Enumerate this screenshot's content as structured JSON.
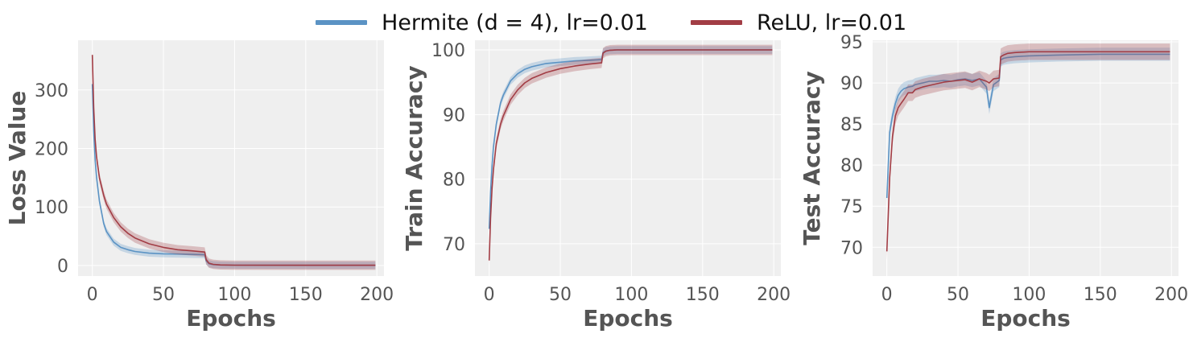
{
  "legend": {
    "items": [
      {
        "label": "Hermite (d = 4), lr=0.01",
        "color": "#5b93c4"
      },
      {
        "label": "ReLU, lr=0.01",
        "color": "#a23d45"
      }
    ]
  },
  "colors": {
    "hermite": "#5b93c4",
    "relu": "#a23d45",
    "axes_bg": "#efefef",
    "grid": "#ffffff",
    "tick_text": "#555555",
    "label_text": "#555555"
  },
  "chart_data": [
    {
      "type": "line",
      "ylabel": "Loss Value",
      "xlabel": "Epochs",
      "xlim": [
        -10,
        205
      ],
      "ylim": [
        -18,
        385
      ],
      "xticks": [
        0,
        50,
        100,
        150,
        200
      ],
      "yticks": [
        0,
        100,
        200,
        300
      ],
      "grid": true,
      "series": [
        {
          "name": "Hermite (d = 4), lr=0.01",
          "color": "#5b93c4",
          "band": 6,
          "x": [
            0,
            1,
            2,
            3,
            5,
            8,
            10,
            15,
            20,
            25,
            30,
            40,
            50,
            60,
            70,
            79,
            80,
            82,
            85,
            90,
            100,
            150,
            199
          ],
          "y": [
            310,
            230,
            180,
            150,
            110,
            72,
            58,
            40,
            31,
            27,
            24,
            21,
            20,
            19.5,
            19,
            18.5,
            8,
            3,
            1.5,
            0.8,
            0.5,
            0.3,
            0.3
          ]
        },
        {
          "name": "ReLU, lr=0.01",
          "color": "#a23d45",
          "band": 8,
          "x": [
            0,
            1,
            2,
            3,
            5,
            8,
            10,
            15,
            20,
            25,
            30,
            40,
            50,
            60,
            70,
            79,
            80,
            82,
            85,
            90,
            100,
            150,
            199
          ],
          "y": [
            360,
            270,
            215,
            185,
            150,
            120,
            105,
            82,
            66,
            55,
            47,
            37,
            31,
            27,
            25,
            23,
            10,
            4,
            2,
            1,
            0.6,
            0.4,
            0.4
          ]
        }
      ]
    },
    {
      "type": "line",
      "ylabel": "Train Accuracy",
      "xlabel": "Epochs",
      "xlim": [
        -10,
        205
      ],
      "ylim": [
        65,
        101.5
      ],
      "xticks": [
        0,
        50,
        100,
        150,
        200
      ],
      "yticks": [
        70,
        80,
        90,
        100
      ],
      "grid": true,
      "series": [
        {
          "name": "Hermite (d = 4), lr=0.01",
          "color": "#5b93c4",
          "band": 0.6,
          "x": [
            0,
            1,
            2,
            3,
            5,
            8,
            10,
            15,
            20,
            25,
            30,
            40,
            50,
            60,
            70,
            79,
            80,
            82,
            85,
            90,
            100,
            150,
            199
          ],
          "y": [
            72.3,
            78,
            82,
            85,
            88.5,
            91.8,
            93,
            95.2,
            96.3,
            97.0,
            97.4,
            97.9,
            98.1,
            98.3,
            98.4,
            98.5,
            99.6,
            99.85,
            99.95,
            100,
            100,
            100,
            100
          ]
        },
        {
          "name": "ReLU, lr=0.01",
          "color": "#a23d45",
          "band": 0.8,
          "x": [
            0,
            1,
            2,
            3,
            5,
            8,
            10,
            15,
            20,
            25,
            30,
            40,
            50,
            60,
            70,
            79,
            80,
            82,
            85,
            90,
            100,
            150,
            199
          ],
          "y": [
            67.4,
            74,
            78.5,
            81.5,
            85.5,
            88.5,
            89.8,
            92.3,
            93.8,
            94.9,
            95.6,
            96.5,
            97.1,
            97.5,
            97.8,
            98.0,
            99.5,
            99.8,
            99.95,
            100,
            100,
            100,
            100
          ]
        }
      ]
    },
    {
      "type": "line",
      "ylabel": "Test Accuracy",
      "xlabel": "Epochs",
      "xlim": [
        -10,
        205
      ],
      "ylim": [
        66.5,
        95.2
      ],
      "xticks": [
        0,
        50,
        100,
        150,
        200
      ],
      "yticks": [
        70,
        75,
        80,
        85,
        90,
        95
      ],
      "grid": true,
      "series": [
        {
          "name": "Hermite (d = 4), lr=0.01",
          "color": "#5b93c4",
          "band": 0.8,
          "x": [
            0,
            2,
            4,
            6,
            8,
            10,
            12,
            15,
            18,
            20,
            25,
            30,
            35,
            40,
            45,
            50,
            55,
            60,
            65,
            70,
            72,
            75,
            79,
            80,
            82,
            85,
            90,
            100,
            120,
            150,
            199
          ],
          "y": [
            76,
            84,
            86,
            87.5,
            88.5,
            89,
            89.3,
            89.5,
            89.6,
            89.8,
            90,
            90.2,
            90.2,
            90.3,
            90.2,
            90.4,
            90.5,
            90.3,
            90.5,
            89.5,
            87,
            89.8,
            90.3,
            92.8,
            93.0,
            93.1,
            93.2,
            93.3,
            93.4,
            93.5,
            93.5
          ]
        },
        {
          "name": "ReLU, lr=0.01",
          "color": "#a23d45",
          "band": 1.0,
          "x": [
            0,
            2,
            4,
            6,
            8,
            10,
            12,
            15,
            18,
            20,
            25,
            30,
            35,
            40,
            45,
            50,
            55,
            60,
            65,
            70,
            72,
            75,
            79,
            80,
            82,
            85,
            90,
            100,
            120,
            150,
            199
          ],
          "y": [
            69.5,
            78.5,
            83.5,
            86,
            87,
            87.5,
            88,
            88.8,
            88.8,
            89.2,
            89.5,
            89.7,
            89.9,
            90.1,
            90.2,
            90.3,
            90.4,
            90.1,
            90.5,
            90.2,
            90.0,
            90.5,
            90.6,
            93.2,
            93.4,
            93.6,
            93.7,
            93.8,
            93.8,
            93.8,
            93.8
          ]
        }
      ]
    }
  ]
}
